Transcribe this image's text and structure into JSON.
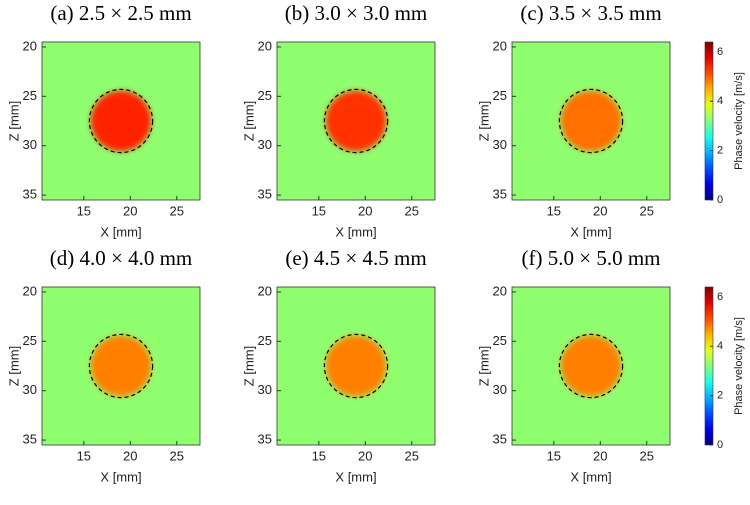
{
  "chart_data": [
    {
      "type": "heatmap",
      "title": "(a) 2.5 × 2.5 mm",
      "xlabel": "X [mm]",
      "ylabel": "Z [mm]",
      "xlim": [
        10.5,
        27.5
      ],
      "xticks": [
        15,
        20,
        25
      ],
      "ylim": [
        19.5,
        35.5
      ],
      "yticks": [
        20,
        25,
        30,
        35
      ],
      "background_value": 3.3,
      "inclusion": {
        "x": 19,
        "z": 27.5,
        "radius": 3.2,
        "value": 5.4
      }
    },
    {
      "type": "heatmap",
      "title": "(b) 3.0 × 3.0 mm",
      "xlabel": "X [mm]",
      "ylabel": "Z [mm]",
      "xlim": [
        10.5,
        27.5
      ],
      "xticks": [
        15,
        20,
        25
      ],
      "ylim": [
        19.5,
        35.5
      ],
      "yticks": [
        20,
        25,
        30,
        35
      ],
      "background_value": 3.3,
      "inclusion": {
        "x": 19,
        "z": 27.5,
        "radius": 3.2,
        "value": 5.3
      }
    },
    {
      "type": "heatmap",
      "title": "(c) 3.5 × 3.5 mm",
      "xlabel": "X [mm]",
      "ylabel": "Z [mm]",
      "xlim": [
        10.5,
        27.5
      ],
      "xticks": [
        15,
        20,
        25
      ],
      "ylim": [
        19.5,
        35.5
      ],
      "yticks": [
        20,
        25,
        30,
        35
      ],
      "background_value": 3.3,
      "inclusion": {
        "x": 19,
        "z": 27.5,
        "radius": 3.2,
        "value": 4.9
      },
      "colorbar": {
        "label": "Phase velocity [m/s]",
        "clim": [
          0,
          6.4
        ],
        "ticks": [
          0,
          2,
          4,
          6
        ]
      }
    },
    {
      "type": "heatmap",
      "title": "(d) 4.0 × 4.0 mm",
      "xlabel": "X [mm]",
      "ylabel": "Z [mm]",
      "xlim": [
        10.5,
        27.5
      ],
      "xticks": [
        15,
        20,
        25
      ],
      "ylim": [
        19.5,
        35.5
      ],
      "yticks": [
        20,
        25,
        30,
        35
      ],
      "background_value": 3.3,
      "inclusion": {
        "x": 19,
        "z": 27.5,
        "radius": 3.2,
        "value": 4.8
      }
    },
    {
      "type": "heatmap",
      "title": "(e) 4.5 × 4.5 mm",
      "xlabel": "X [mm]",
      "ylabel": "Z [mm]",
      "xlim": [
        10.5,
        27.5
      ],
      "xticks": [
        15,
        20,
        25
      ],
      "ylim": [
        19.5,
        35.5
      ],
      "yticks": [
        20,
        25,
        30,
        35
      ],
      "background_value": 3.3,
      "inclusion": {
        "x": 19,
        "z": 27.5,
        "radius": 3.2,
        "value": 4.8
      }
    },
    {
      "type": "heatmap",
      "title": "(f) 5.0 × 5.0 mm",
      "xlabel": "X [mm]",
      "ylabel": "Z [mm]",
      "xlim": [
        10.5,
        27.5
      ],
      "xticks": [
        15,
        20,
        25
      ],
      "ylim": [
        19.5,
        35.5
      ],
      "yticks": [
        20,
        25,
        30,
        35
      ],
      "background_value": 3.3,
      "inclusion": {
        "x": 19,
        "z": 27.5,
        "radius": 3.2,
        "value": 4.8
      },
      "colorbar": {
        "label": "Phase velocity [m/s]",
        "clim": [
          0,
          6.4
        ],
        "ticks": [
          0,
          2,
          4,
          6
        ]
      }
    }
  ]
}
